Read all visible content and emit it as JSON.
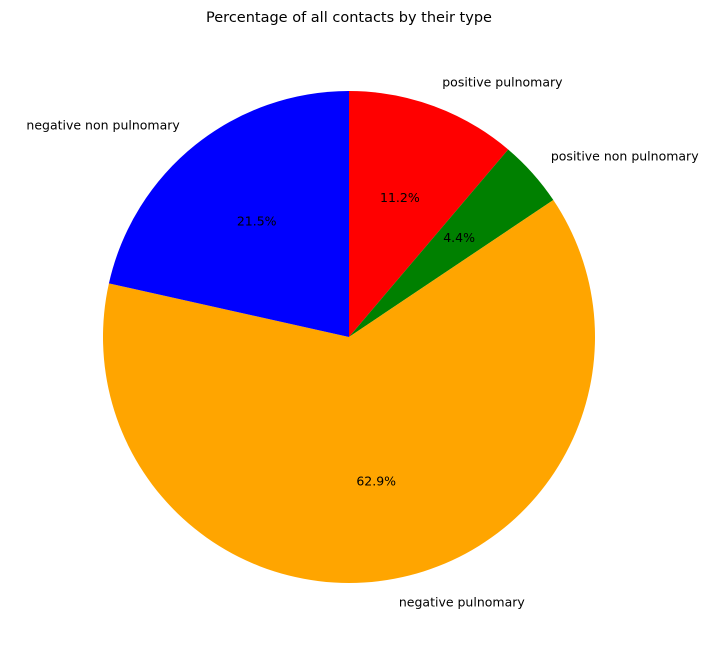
{
  "chart_data": {
    "type": "pie",
    "title": "Percentage of all contacts by their type",
    "slices": [
      {
        "label": "positive pulnomary",
        "value": 11.2,
        "pct_label": "11.2%",
        "color": "#ff0000"
      },
      {
        "label": "positive non pulnomary",
        "value": 4.4,
        "pct_label": "4.4%",
        "color": "#008000"
      },
      {
        "label": "negative pulnomary",
        "value": 62.9,
        "pct_label": "62.9%",
        "color": "#ffa500"
      },
      {
        "label": "negative non pulnomary",
        "value": 21.5,
        "pct_label": "21.5%",
        "color": "#0000ff"
      }
    ],
    "start_angle": "top",
    "direction": "clockwise",
    "legend": "none"
  }
}
